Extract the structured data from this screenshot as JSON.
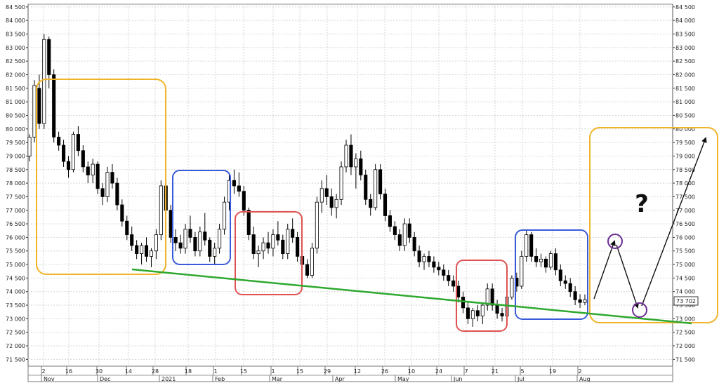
{
  "chart_data": {
    "type": "candlestick",
    "y_axis": {
      "min": 71250,
      "max": 84600,
      "ticks": [
        71500,
        72000,
        72500,
        73000,
        73500,
        74000,
        74500,
        75000,
        75500,
        76000,
        76500,
        77000,
        77500,
        78000,
        78500,
        79000,
        79500,
        80000,
        80500,
        81000,
        81500,
        82000,
        82500,
        83000,
        83500,
        84000,
        84500
      ],
      "tick_labels": [
        "71 500",
        "72 000",
        "72 500",
        "73 000",
        "73 500",
        "74 000",
        "74 500",
        "75 000",
        "75 500",
        "76 000",
        "76 500",
        "77 000",
        "77 500",
        "78 000",
        "78 500",
        "79 000",
        "79 500",
        "80 000",
        "80 500",
        "81 000",
        "81 500",
        "82 000",
        "82 500",
        "83 000",
        "83 500",
        "84 000",
        "84 500"
      ],
      "both_sides": true
    },
    "x_axis": {
      "date_labels": [
        "2",
        "16",
        "30",
        "14",
        "28",
        "18",
        "1",
        "15",
        "1",
        "15",
        "29",
        "12",
        "26",
        "10",
        "24",
        "7",
        "21",
        "5",
        "19",
        "2"
      ],
      "month_labels": [
        "Nov",
        "Dec",
        "2021",
        "Feb",
        "Mar",
        "Apr",
        "May",
        "Jun",
        "Jul",
        "Aug"
      ]
    },
    "last_price_label": "73 702",
    "last_price": 73702,
    "grid": true,
    "candles": [
      [
        79000,
        79800,
        78800,
        79700
      ],
      [
        79700,
        81800,
        79500,
        81600
      ],
      [
        81500,
        82000,
        80000,
        80200
      ],
      [
        80200,
        83500,
        80000,
        83300
      ],
      [
        83300,
        83400,
        81500,
        82000
      ],
      [
        82000,
        82200,
        79500,
        79700
      ],
      [
        79700,
        79900,
        79200,
        79400
      ],
      [
        79400,
        79600,
        78600,
        78800
      ],
      [
        78800,
        79000,
        78200,
        78500
      ],
      [
        78500,
        79900,
        78400,
        79800
      ],
      [
        79800,
        80100,
        79000,
        79200
      ],
      [
        79200,
        79400,
        78400,
        78600
      ],
      [
        78600,
        78800,
        78000,
        78300
      ],
      [
        78300,
        78900,
        78000,
        78700
      ],
      [
        78700,
        78800,
        77600,
        77800
      ],
      [
        77800,
        78000,
        77200,
        77500
      ],
      [
        77500,
        78600,
        77300,
        78400
      ],
      [
        78400,
        78700,
        77800,
        78000
      ],
      [
        78000,
        78200,
        77000,
        77200
      ],
      [
        77200,
        77400,
        76400,
        76600
      ],
      [
        76600,
        76800,
        75900,
        76100
      ],
      [
        76100,
        76400,
        75500,
        75700
      ],
      [
        75700,
        75900,
        75200,
        75400
      ],
      [
        75400,
        75800,
        75000,
        75700
      ],
      [
        75700,
        76000,
        75100,
        75300
      ],
      [
        75300,
        75600,
        74900,
        75500
      ],
      [
        75500,
        76300,
        75200,
        76100
      ],
      [
        76100,
        78100,
        75900,
        77900
      ],
      [
        77900,
        78100,
        76800,
        77000
      ],
      [
        77000,
        77200,
        75800,
        76000
      ],
      [
        76000,
        76300,
        75500,
        75800
      ],
      [
        75800,
        76100,
        75400,
        75600
      ],
      [
        75600,
        76500,
        75400,
        76300
      ],
      [
        76300,
        76800,
        75800,
        76000
      ],
      [
        76000,
        76200,
        75300,
        75500
      ],
      [
        75500,
        76400,
        75300,
        76200
      ],
      [
        76200,
        76900,
        75700,
        75900
      ],
      [
        75900,
        76000,
        75100,
        75300
      ],
      [
        75300,
        75800,
        75000,
        75600
      ],
      [
        75600,
        76500,
        75400,
        76300
      ],
      [
        76300,
        77500,
        76100,
        77300
      ],
      [
        77300,
        78300,
        77000,
        78100
      ],
      [
        78100,
        78500,
        77600,
        77900
      ],
      [
        77900,
        78400,
        77500,
        77700
      ],
      [
        77700,
        77900,
        76800,
        77000
      ],
      [
        77000,
        77100,
        75900,
        76100
      ],
      [
        76100,
        76400,
        75200,
        75400
      ],
      [
        75400,
        75700,
        74900,
        75500
      ],
      [
        75500,
        76000,
        75200,
        75800
      ],
      [
        75800,
        76200,
        75400,
        75600
      ],
      [
        75600,
        76300,
        75300,
        76100
      ],
      [
        76100,
        76600,
        75700,
        75900
      ],
      [
        75900,
        76100,
        75200,
        75400
      ],
      [
        75400,
        76500,
        75200,
        76300
      ],
      [
        76300,
        76700,
        75800,
        76000
      ],
      [
        76000,
        76200,
        75100,
        75300
      ],
      [
        75300,
        75500,
        74800,
        75000
      ],
      [
        75000,
        75200,
        74500,
        74600
      ],
      [
        74600,
        75800,
        74500,
        75600
      ],
      [
        75600,
        77500,
        75400,
        77300
      ],
      [
        77300,
        78100,
        76900,
        77800
      ],
      [
        77800,
        78300,
        77200,
        77500
      ],
      [
        77500,
        77800,
        76800,
        77100
      ],
      [
        77100,
        77600,
        76700,
        77400
      ],
      [
        77400,
        78800,
        77200,
        78600
      ],
      [
        78600,
        79600,
        78400,
        79400
      ],
      [
        79400,
        79800,
        78300,
        78600
      ],
      [
        78600,
        79100,
        77800,
        78900
      ],
      [
        78900,
        79200,
        78100,
        78300
      ],
      [
        78300,
        78500,
        77200,
        77400
      ],
      [
        77400,
        77600,
        76800,
        77100
      ],
      [
        77100,
        78700,
        77000,
        78500
      ],
      [
        78500,
        78700,
        77400,
        77600
      ],
      [
        77600,
        77800,
        76600,
        76800
      ],
      [
        76800,
        77000,
        76200,
        76400
      ],
      [
        76400,
        76600,
        75900,
        76100
      ],
      [
        76100,
        76300,
        75500,
        75700
      ],
      [
        75700,
        76700,
        75500,
        76500
      ],
      [
        76500,
        76700,
        75800,
        76000
      ],
      [
        76000,
        76200,
        75300,
        75500
      ],
      [
        75500,
        75700,
        74900,
        75100
      ],
      [
        75100,
        75400,
        74800,
        75300
      ],
      [
        75300,
        75500,
        74900,
        75100
      ],
      [
        75100,
        75300,
        74700,
        74900
      ],
      [
        74900,
        75100,
        74600,
        74800
      ],
      [
        74800,
        75000,
        74400,
        74600
      ],
      [
        74600,
        74800,
        74200,
        74400
      ],
      [
        74400,
        74600,
        74000,
        74200
      ],
      [
        74200,
        74400,
        73600,
        73800
      ],
      [
        73800,
        74000,
        73200,
        73400
      ],
      [
        73400,
        73600,
        72800,
        73000
      ],
      [
        73000,
        73400,
        72700,
        73300
      ],
      [
        73300,
        73500,
        72900,
        73100
      ],
      [
        73100,
        73600,
        72800,
        73500
      ],
      [
        73500,
        74300,
        73300,
        74100
      ],
      [
        74100,
        74300,
        73300,
        73500
      ],
      [
        73500,
        73700,
        73000,
        73200
      ],
      [
        73200,
        73400,
        72900,
        73100
      ],
      [
        73100,
        73900,
        73000,
        73800
      ],
      [
        73800,
        74600,
        73700,
        74500
      ],
      [
        74500,
        74700,
        74000,
        74200
      ],
      [
        74200,
        75500,
        74100,
        75300
      ],
      [
        75300,
        76300,
        75100,
        76100
      ],
      [
        76100,
        76200,
        75100,
        75300
      ],
      [
        75300,
        75600,
        74900,
        75100
      ],
      [
        75100,
        75400,
        74900,
        75200
      ],
      [
        75200,
        75300,
        74700,
        74900
      ],
      [
        74900,
        75500,
        74800,
        75400
      ],
      [
        75400,
        75600,
        74600,
        74800
      ],
      [
        74800,
        75000,
        74200,
        74400
      ],
      [
        74400,
        74600,
        74100,
        74300
      ],
      [
        74300,
        74500,
        73800,
        74000
      ],
      [
        74000,
        74200,
        73500,
        73700
      ],
      [
        73700,
        73900,
        73400,
        73600
      ],
      [
        73600,
        73900,
        73500,
        73702
      ]
    ],
    "support_line": [
      [
        75130,
        1
      ],
      [
        72900,
        2
      ]
    ],
    "projection_arrows": "down-up-down-up",
    "question_mark": "?"
  }
}
